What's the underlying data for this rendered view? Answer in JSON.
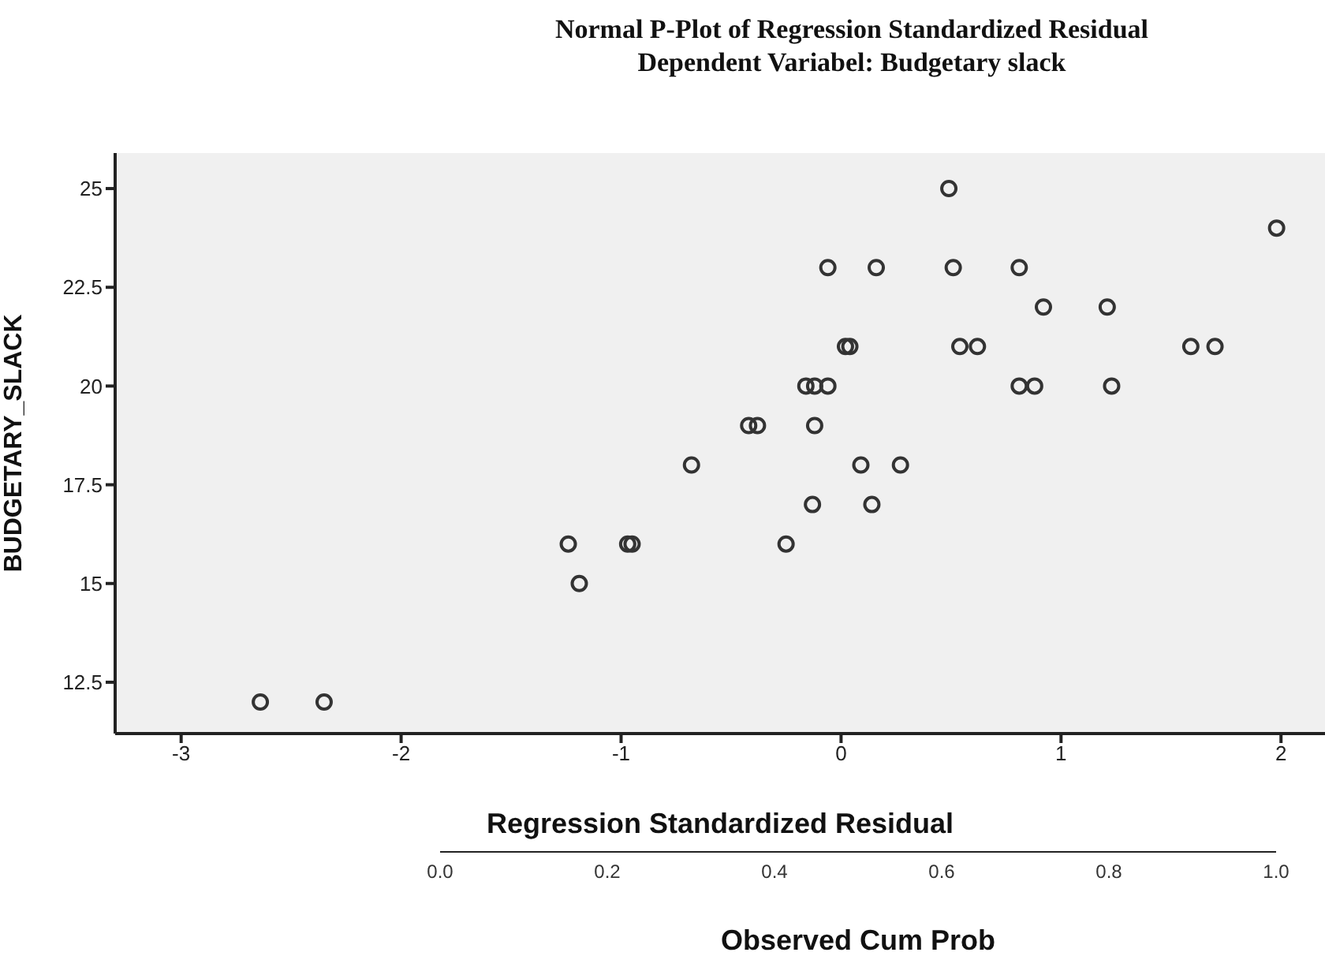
{
  "chart_data": {
    "type": "scatter",
    "title": "Normal P-Plot of Regression Standardized Residual",
    "subtitle": "Dependent Variabel: Budgetary slack",
    "xlabel": "Regression Standardized Residual",
    "ylabel": "BUDGETARY_SLACK",
    "x2label": "Observed Cum Prob",
    "x2lim": [
      0,
      1
    ],
    "x2ticks": [
      {
        "value": 0,
        "label": "0.0"
      },
      {
        "value": 0.2,
        "label": "0.2"
      },
      {
        "value": 0.4,
        "label": "0.4"
      },
      {
        "value": 0.6,
        "label": "0.6"
      },
      {
        "value": 0.8,
        "label": "0.8"
      },
      {
        "value": 1,
        "label": "1.0"
      }
    ],
    "xlim": [
      -3.3,
      2.2
    ],
    "xticks": [
      -3,
      -2,
      -1,
      0,
      1,
      2
    ],
    "ylim": [
      11.2,
      25.9
    ],
    "yticks": [
      12.5,
      15,
      17.5,
      20,
      22.5,
      25
    ],
    "grid": false,
    "legend": false,
    "marker": "circle",
    "series": [
      {
        "color": "#333333",
        "x": [
          -2.64,
          -2.35,
          -0.68,
          -1.24,
          -0.97,
          -0.95,
          -1.19,
          0.49,
          1.98,
          -0.06,
          0.16,
          0.51,
          0.81,
          0.92,
          1.21,
          0.02,
          0.04,
          0.54,
          0.62,
          1.59,
          1.7,
          -0.16,
          -0.12,
          -0.06,
          0.81,
          0.88,
          1.23,
          -0.42,
          -0.38,
          -0.12,
          0.09,
          0.27,
          -0.13,
          0.14,
          -0.25
        ],
        "values": [
          12,
          12,
          18,
          16,
          16,
          16,
          15,
          25,
          24,
          23,
          23,
          23,
          23,
          22,
          22,
          21,
          21,
          21,
          21,
          21,
          21,
          20,
          20,
          20,
          20,
          20,
          20,
          19,
          19,
          19,
          18,
          18,
          17,
          17,
          16
        ]
      }
    ]
  }
}
